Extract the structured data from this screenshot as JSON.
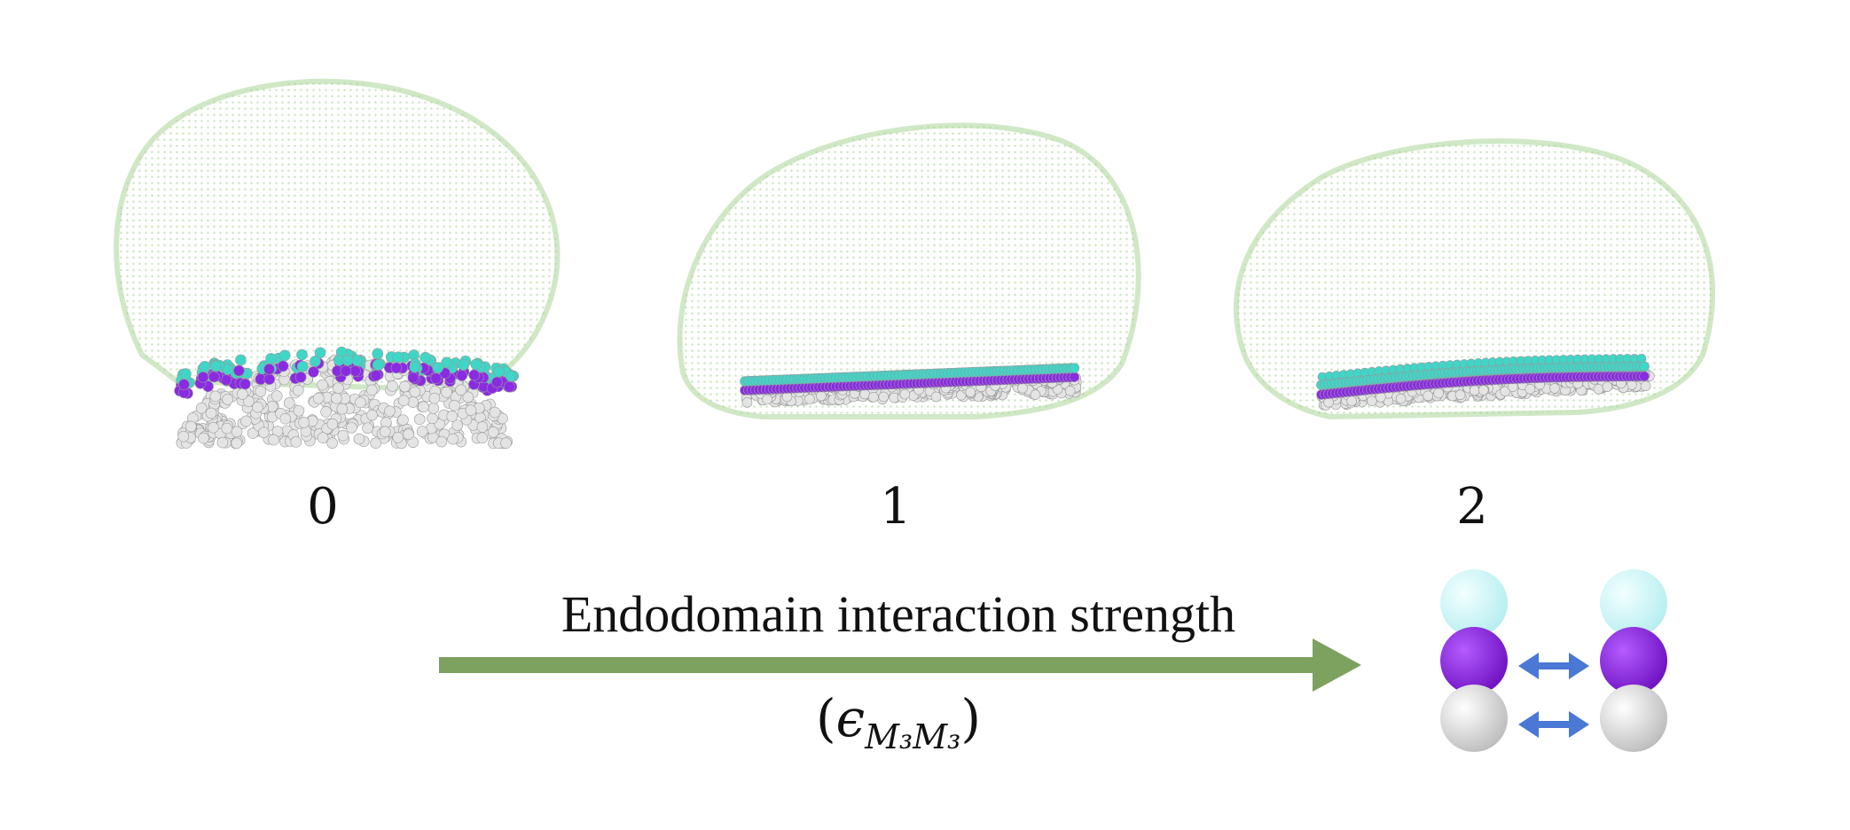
{
  "panels": [
    {
      "label": "0",
      "interaction_strength": 0
    },
    {
      "label": "1",
      "interaction_strength": 1
    },
    {
      "label": "2",
      "interaction_strength": 2
    }
  ],
  "arrow": {
    "title": "Endodomain interaction strength",
    "symbol_open": "(",
    "symbol_epsilon": "ϵ",
    "symbol_subscript": "M₃M₃",
    "symbol_close": ")"
  },
  "colors": {
    "vesicle": "#8cc47a",
    "head": "#3fd6c8",
    "head_light": "#c9f3f4",
    "mid": "#8a2be2",
    "tail": "#e2e2e2",
    "arrow": "#7da15e",
    "double_arrow": "#4a78d4"
  }
}
